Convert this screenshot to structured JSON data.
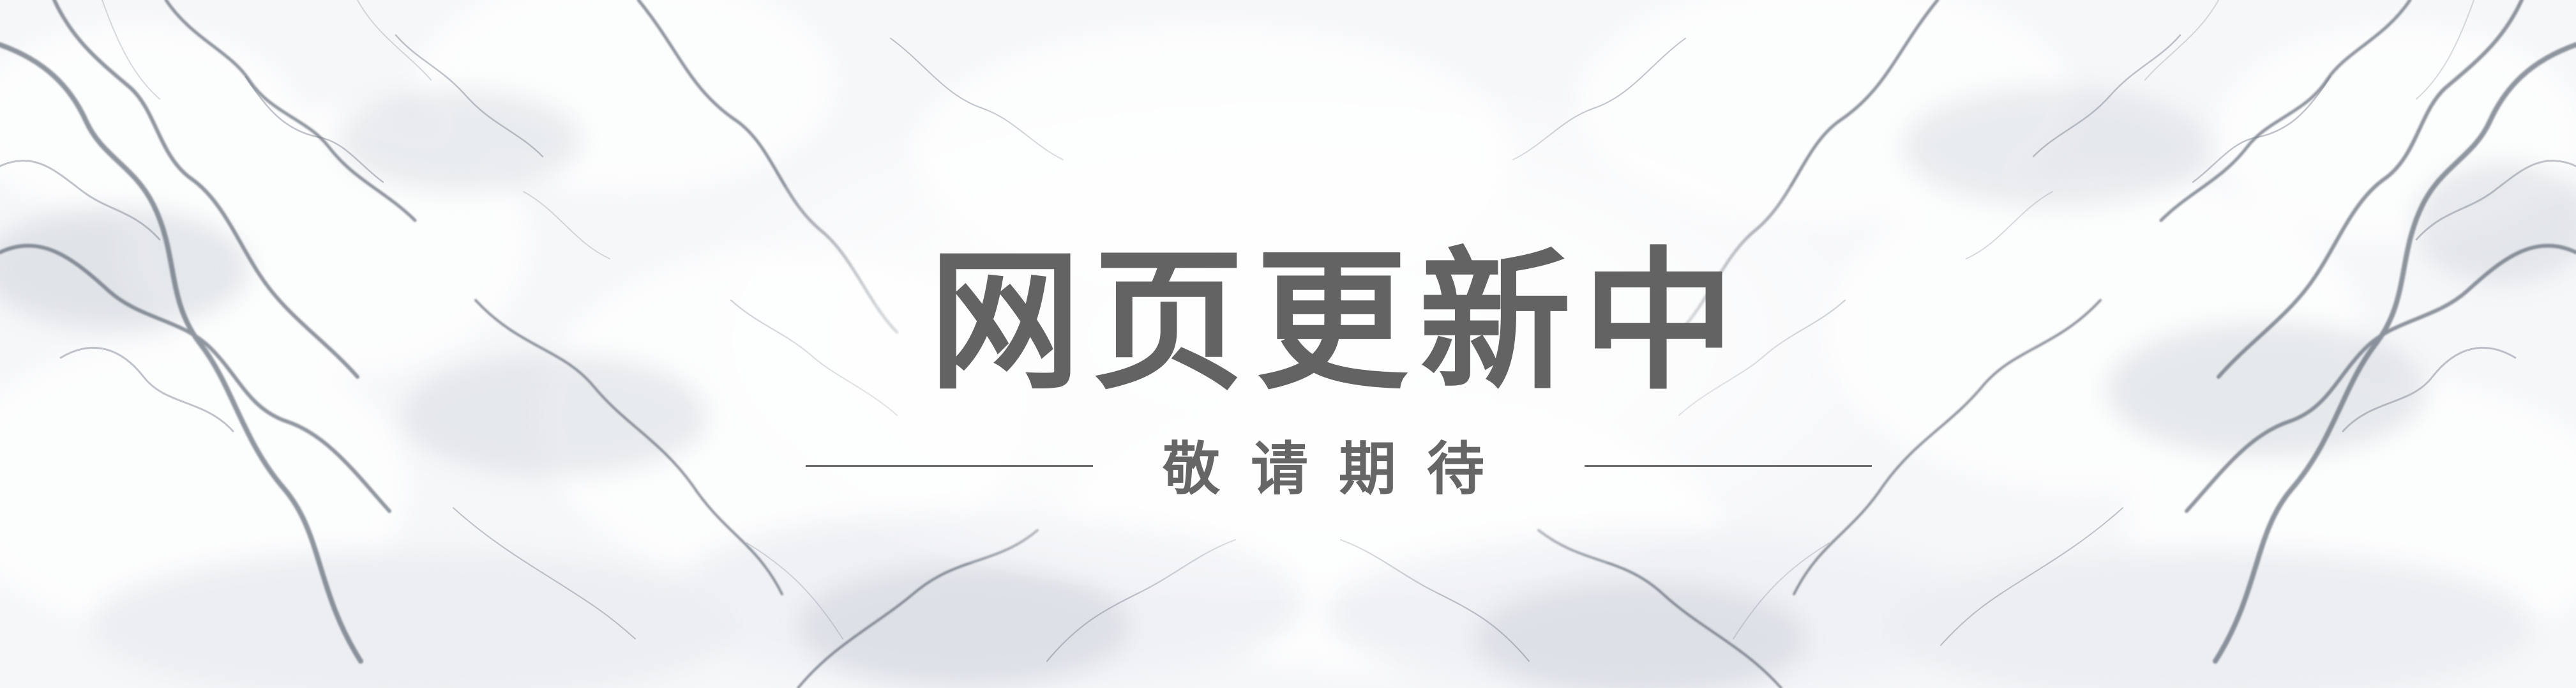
{
  "banner": {
    "headline": "网页更新中",
    "subtitle": "敬请期待",
    "colors": {
      "text": "#636363",
      "line": "#6d6d6d",
      "background": "#f6f7f9",
      "vein": "#505866"
    }
  }
}
